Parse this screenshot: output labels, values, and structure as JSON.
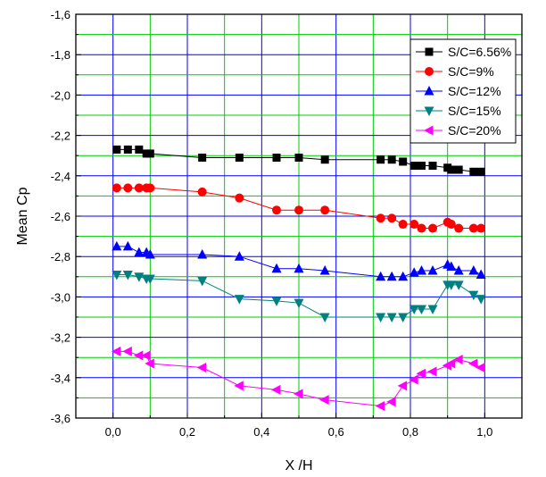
{
  "chart_data": {
    "type": "line",
    "xlabel": "X /H",
    "ylabel": "Mean Cp",
    "xlim": [
      -0.1,
      1.1
    ],
    "ylim": [
      -3.6,
      -1.6
    ],
    "xticks": [
      "0,0",
      "0,2",
      "0,4",
      "0,6",
      "0,8",
      "1,0"
    ],
    "xtick_values": [
      0.0,
      0.2,
      0.4,
      0.6,
      0.8,
      1.0
    ],
    "yticks": [
      "-1,6",
      "-1,8",
      "-2,0",
      "-2,2",
      "-2,4",
      "-2,6",
      "-2,8",
      "-3,0",
      "-3,2",
      "-3,4",
      "-3,6"
    ],
    "ytick_values": [
      -1.6,
      -1.8,
      -2.0,
      -2.2,
      -2.4,
      -2.6,
      -2.8,
      -3.0,
      -3.2,
      -3.4,
      -3.6
    ],
    "grid": true,
    "grid_colors": {
      "major": "#0000ff",
      "minor": "#00cc00"
    },
    "legend_position": "top-right",
    "series": [
      {
        "name": "S/C=6.56%",
        "color": "#000000",
        "marker": "square",
        "x": [
          0.01,
          0.04,
          0.07,
          0.09,
          0.1,
          0.24,
          0.34,
          0.44,
          0.5,
          0.57,
          0.72,
          0.75,
          0.78,
          0.81,
          0.83,
          0.86,
          0.9,
          0.91,
          0.93,
          0.97,
          0.99
        ],
        "y": [
          -2.27,
          -2.27,
          -2.27,
          -2.29,
          -2.29,
          -2.31,
          -2.31,
          -2.31,
          -2.31,
          -2.32,
          -2.32,
          -2.32,
          -2.33,
          -2.35,
          -2.35,
          -2.35,
          -2.36,
          -2.37,
          -2.37,
          -2.38,
          -2.38
        ]
      },
      {
        "name": "S/C=9%",
        "color": "#ff0000",
        "marker": "circle",
        "x": [
          0.01,
          0.04,
          0.07,
          0.09,
          0.1,
          0.24,
          0.34,
          0.44,
          0.5,
          0.57,
          0.72,
          0.75,
          0.78,
          0.81,
          0.83,
          0.86,
          0.9,
          0.91,
          0.93,
          0.97,
          0.99
        ],
        "y": [
          -2.46,
          -2.46,
          -2.46,
          -2.46,
          -2.46,
          -2.48,
          -2.51,
          -2.57,
          -2.57,
          -2.57,
          -2.61,
          -2.61,
          -2.64,
          -2.64,
          -2.66,
          -2.66,
          -2.63,
          -2.64,
          -2.66,
          -2.66,
          -2.66
        ]
      },
      {
        "name": "S/C=12%",
        "color": "#0000ff",
        "marker": "triangle-up",
        "x": [
          0.01,
          0.04,
          0.07,
          0.09,
          0.1,
          0.24,
          0.34,
          0.44,
          0.5,
          0.57,
          0.72,
          0.75,
          0.78,
          0.81,
          0.83,
          0.86,
          0.9,
          0.91,
          0.93,
          0.97,
          0.99
        ],
        "y": [
          -2.75,
          -2.75,
          -2.78,
          -2.78,
          -2.79,
          -2.79,
          -2.8,
          -2.86,
          -2.86,
          -2.87,
          -2.9,
          -2.9,
          -2.9,
          -2.88,
          -2.87,
          -2.87,
          -2.84,
          -2.85,
          -2.87,
          -2.87,
          -2.89
        ]
      },
      {
        "name": "S/C=15%",
        "color": "#008080",
        "marker": "triangle-down",
        "x": [
          0.01,
          0.04,
          0.07,
          0.09,
          0.1,
          0.24,
          0.34,
          0.44,
          0.5,
          0.57,
          0.72,
          0.75,
          0.78,
          0.81,
          0.83,
          0.86,
          0.9,
          0.91,
          0.93,
          0.97,
          0.99
        ],
        "y": [
          -2.89,
          -2.89,
          -2.9,
          -2.91,
          -2.91,
          -2.92,
          -3.01,
          -3.02,
          -3.03,
          -3.1,
          -3.1,
          -3.1,
          -3.1,
          -3.06,
          -3.06,
          -3.06,
          -2.94,
          -2.94,
          -2.94,
          -2.99,
          -3.01
        ]
      },
      {
        "name": "S/C=20%",
        "color": "#ff00ff",
        "marker": "triangle-left",
        "x": [
          0.01,
          0.04,
          0.07,
          0.09,
          0.1,
          0.24,
          0.34,
          0.44,
          0.5,
          0.57,
          0.72,
          0.75,
          0.78,
          0.81,
          0.83,
          0.86,
          0.9,
          0.91,
          0.93,
          0.97,
          0.99
        ],
        "y": [
          -3.27,
          -3.27,
          -3.29,
          -3.29,
          -3.33,
          -3.35,
          -3.44,
          -3.46,
          -3.48,
          -3.51,
          -3.54,
          -3.52,
          -3.44,
          -3.41,
          -3.38,
          -3.37,
          -3.34,
          -3.33,
          -3.31,
          -3.33,
          -3.35
        ]
      }
    ]
  }
}
